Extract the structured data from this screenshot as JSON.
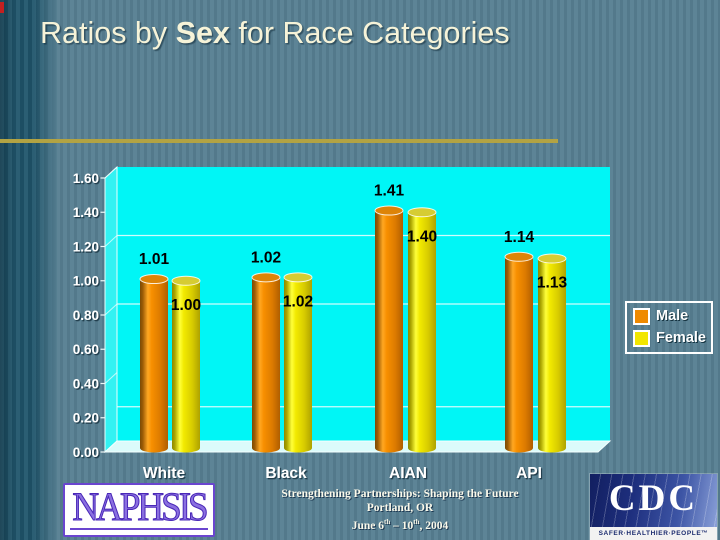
{
  "slide": {
    "title": {
      "prefix": "Ratios by ",
      "bold": "Sex",
      "suffix": " for Race Categories"
    }
  },
  "chart_data": {
    "type": "bar",
    "style": "3d-cylinder",
    "title": "",
    "categories": [
      "White",
      "Black",
      "AIAN",
      "API"
    ],
    "series": [
      {
        "name": "Male",
        "color": "#EF8A00",
        "values": [
          1.01,
          1.02,
          1.41,
          1.14
        ]
      },
      {
        "name": "Female",
        "color": "#F2E600",
        "values": [
          1.0,
          1.02,
          1.4,
          1.13
        ]
      }
    ],
    "data_labels": {
      "Male": [
        "1.01",
        "1.02",
        "1.41",
        "1.14"
      ],
      "Female": [
        "1.00",
        "1.02",
        "1.40",
        "1.13"
      ]
    },
    "ylim": [
      0,
      1.6
    ],
    "ytick_step": 0.2,
    "ytick_labels": [
      "0.00",
      "0.20",
      "0.40",
      "0.60",
      "0.80",
      "1.00",
      "1.20",
      "1.40",
      "1.60"
    ],
    "gridline_values": [
      1.2,
      0.8,
      0.2
    ],
    "plot_bg": "#00F6F6",
    "legend_position": "right"
  },
  "legend": {
    "items": [
      {
        "label": "Male",
        "color": "#EF8A00"
      },
      {
        "label": "Female",
        "color": "#F2E600"
      }
    ]
  },
  "footer": {
    "conference_line": "Strengthening Partnerships: Shaping the Future",
    "location_line": "Portland, OR",
    "date_line": {
      "pre": "June 6",
      "sup_a": "th",
      "mid": " – 10",
      "sup_b": "th",
      "end": ", 2004"
    }
  },
  "logos": {
    "naphsis": {
      "text": "NAPHSIS"
    },
    "cdc": {
      "text": "CDC",
      "tagline": "SAFER·HEALTHIER·PEOPLE™"
    }
  },
  "colors": {
    "slide_background": "#57808F",
    "title_text": "#F6F3D8",
    "accent_rule": "#B2A343",
    "plot_background": "#00F6F6",
    "male_bar": "#EF8A00",
    "female_bar": "#F2E600"
  }
}
